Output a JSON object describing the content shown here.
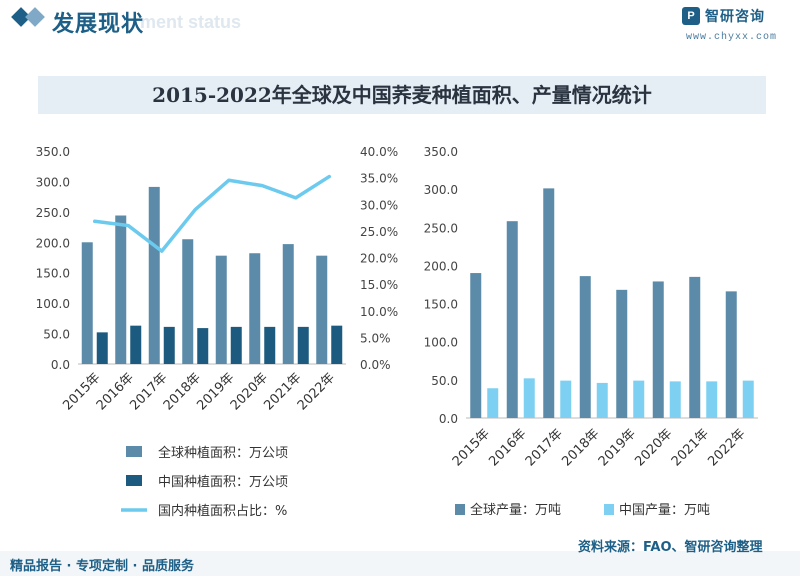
{
  "header": {
    "title": "发展现状",
    "subtitle": "ment status"
  },
  "brand": {
    "name": "智研咨询",
    "url": "www.chyxx.com"
  },
  "main_title": "2015-2022年全球及中国荞麦种植面积、产量情况统计",
  "footer": {
    "left": "精品报告 · 专项定制 · 品质服务",
    "source": "资料来源：FAO、智研咨询整理"
  },
  "colors": {
    "accent": "#1d5f86",
    "global_bar": "#5b8ba8",
    "china_bar": "#1c5a7f",
    "share_line": "#6ccaee",
    "china_output_bar": "#7dd0f2"
  },
  "chart_data": [
    {
      "type": "bar",
      "categories": [
        "2015年",
        "2016年",
        "2017年",
        "2018年",
        "2019年",
        "2020年",
        "2021年",
        "2022年"
      ],
      "ylim": [
        0,
        350
      ],
      "y_ticks": [
        "0.0",
        "50.0",
        "100.0",
        "150.0",
        "200.0",
        "250.0",
        "300.0",
        "350.0"
      ],
      "y2lim": [
        0,
        40
      ],
      "y2_ticks": [
        "0.0%",
        "5.0%",
        "10.0%",
        "15.0%",
        "20.0%",
        "25.0%",
        "30.0%",
        "35.0%",
        "40.0%"
      ],
      "grid": false,
      "legend_position": "bottom",
      "series": [
        {
          "name": "全球种植面积：万公顷",
          "kind": "bar",
          "axis": "left",
          "color": "#5b8ba8",
          "values": [
            200,
            244,
            291,
            205,
            178,
            182,
            197,
            178
          ]
        },
        {
          "name": "中国种植面积：万公顷",
          "kind": "bar",
          "axis": "left",
          "color": "#1c5a7f",
          "values": [
            52,
            63,
            61,
            59,
            61,
            61,
            61,
            63
          ]
        },
        {
          "name": "国内种植面积占比：%",
          "kind": "line",
          "axis": "right",
          "color": "#6ccaee",
          "values": [
            26.8,
            26.0,
            21.2,
            29.0,
            34.5,
            33.5,
            31.2,
            35.2
          ]
        }
      ]
    },
    {
      "type": "bar",
      "categories": [
        "2015年",
        "2016年",
        "2017年",
        "2018年",
        "2019年",
        "2020年",
        "2021年",
        "2022年"
      ],
      "ylim": [
        0,
        350
      ],
      "y_ticks": [
        "0.0",
        "50.0",
        "100.0",
        "150.0",
        "200.0",
        "250.0",
        "300.0",
        "350.0"
      ],
      "grid": false,
      "legend_position": "bottom",
      "series": [
        {
          "name": "全球产量：万吨",
          "kind": "bar",
          "color": "#5b8ba8",
          "values": [
            190,
            258,
            301,
            186,
            168,
            179,
            185,
            166
          ]
        },
        {
          "name": "中国产量：万吨",
          "kind": "bar",
          "color": "#7dd0f2",
          "values": [
            39,
            52,
            49,
            46,
            49,
            48,
            48,
            49
          ]
        }
      ]
    }
  ]
}
